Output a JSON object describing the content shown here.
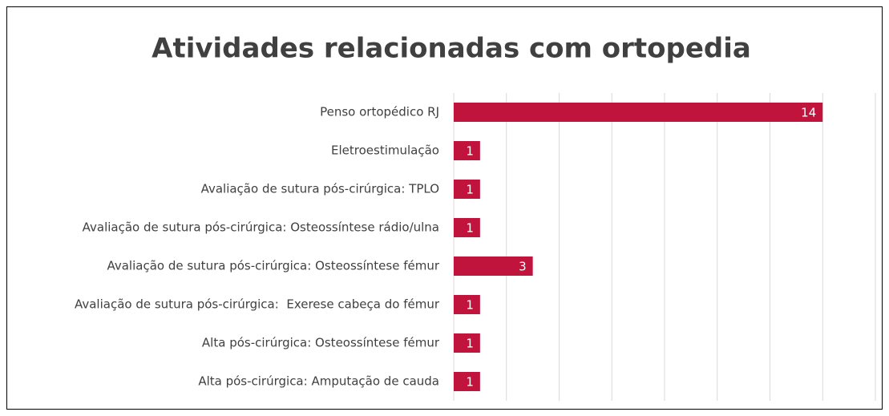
{
  "chart_data": {
    "type": "barh",
    "title": "Atividades relacionadas com ortopedia",
    "categories": [
      "Penso ortopédico RJ",
      "Eletroestimulação",
      "Avaliação de sutura pós-cirúrgica: TPLO",
      "Avaliação de sutura pós-cirúrgica: Osteossíntese rádio/ulna",
      "Avaliação de sutura pós-cirúrgica: Osteossíntese fémur",
      "Avaliação de sutura pós-cirúrgica:  Exerese cabeça do fémur",
      "Alta pós-cirúrgica: Osteossíntese fémur",
      "Alta pós-cirúrgica: Amputação de cauda"
    ],
    "values": [
      14,
      1,
      1,
      1,
      3,
      1,
      1,
      1
    ],
    "color": "#c0143c",
    "xlim": [
      0,
      16
    ],
    "xticks": [
      0,
      2,
      4,
      6,
      8,
      10,
      12,
      14,
      16
    ],
    "grid": true
  }
}
